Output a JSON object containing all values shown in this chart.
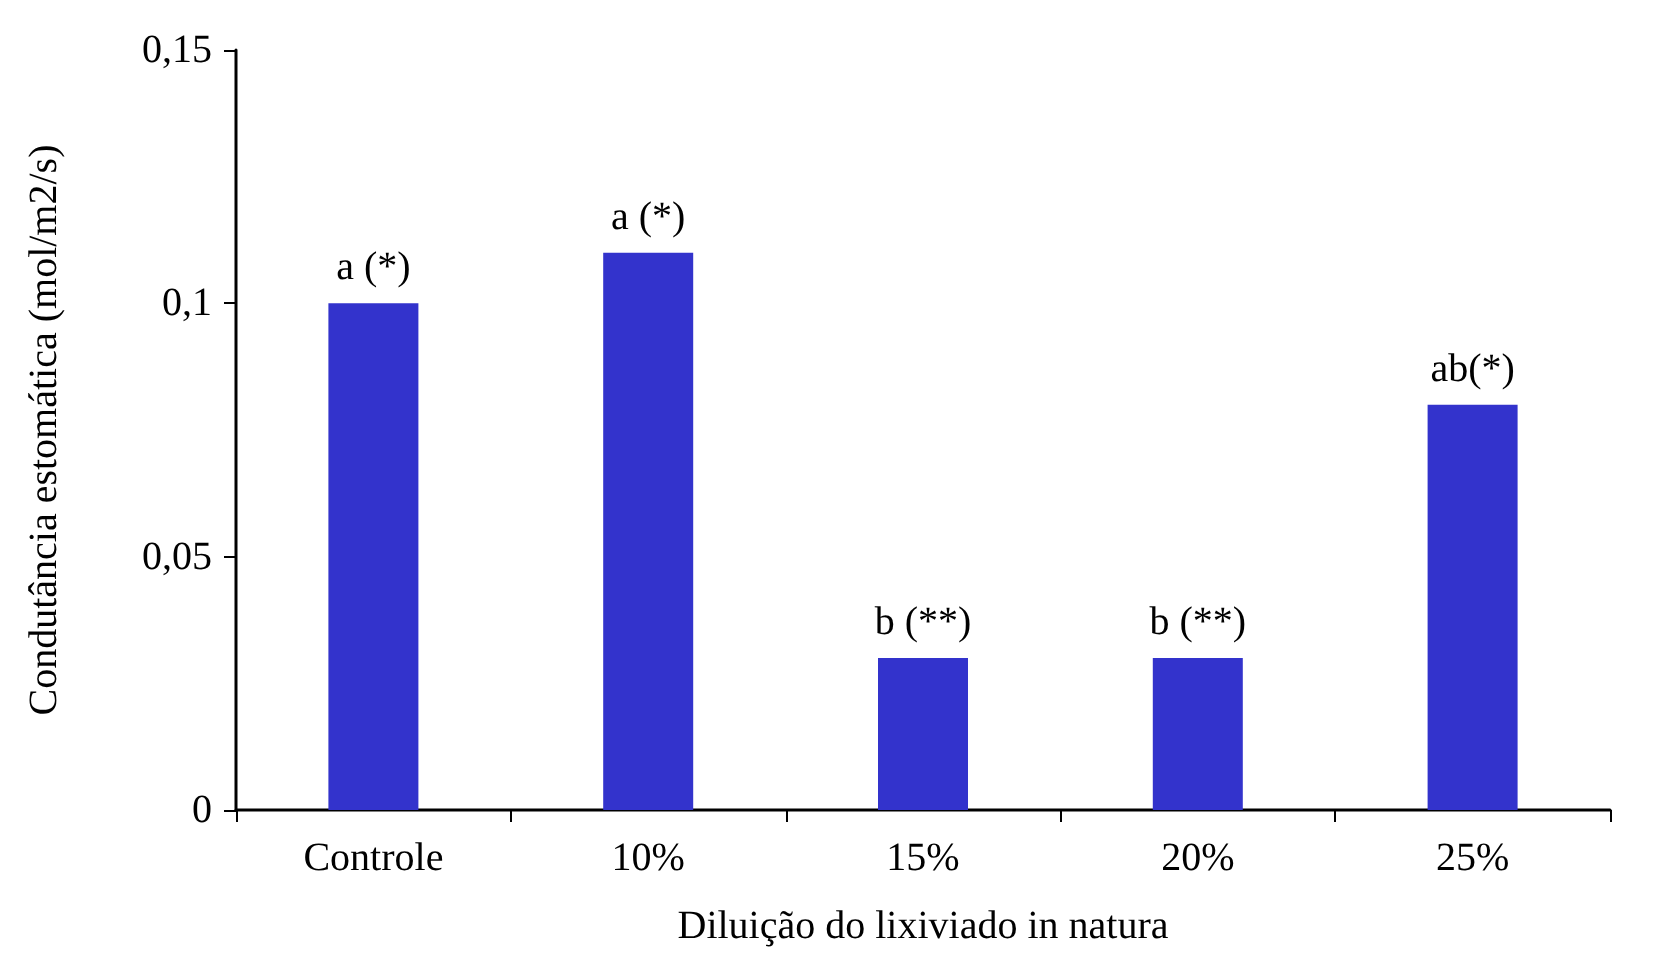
{
  "chart_data": {
    "type": "bar",
    "xlabel": "Diluição do lixiviado in natura",
    "ylabel": "Condutância estomática (mol/m2/s)",
    "categories": [
      "Controle",
      "10%",
      "15%",
      "20%",
      "25%"
    ],
    "values": [
      0.1,
      0.11,
      0.03,
      0.03,
      0.08
    ],
    "color": "#3333cc",
    "ylim": [
      0,
      0.15
    ],
    "yticks": [
      {
        "value": 0,
        "label": "0"
      },
      {
        "value": 0.05,
        "label": "0,05"
      },
      {
        "value": 0.1,
        "label": "0,1"
      },
      {
        "value": 0.15,
        "label": "0,15"
      }
    ],
    "annotations": [
      {
        "text": "a (*)",
        "x": "Controle",
        "y": 0.1
      },
      {
        "text": "a (*)",
        "x": "10%",
        "y": 0.11
      },
      {
        "text": "b (**)",
        "x": "15%",
        "y": 0.03
      },
      {
        "text": "b (**)",
        "x": "20%",
        "y": 0.03
      },
      {
        "text": "ab(*)",
        "x": "25%",
        "y": 0.08
      }
    ]
  }
}
